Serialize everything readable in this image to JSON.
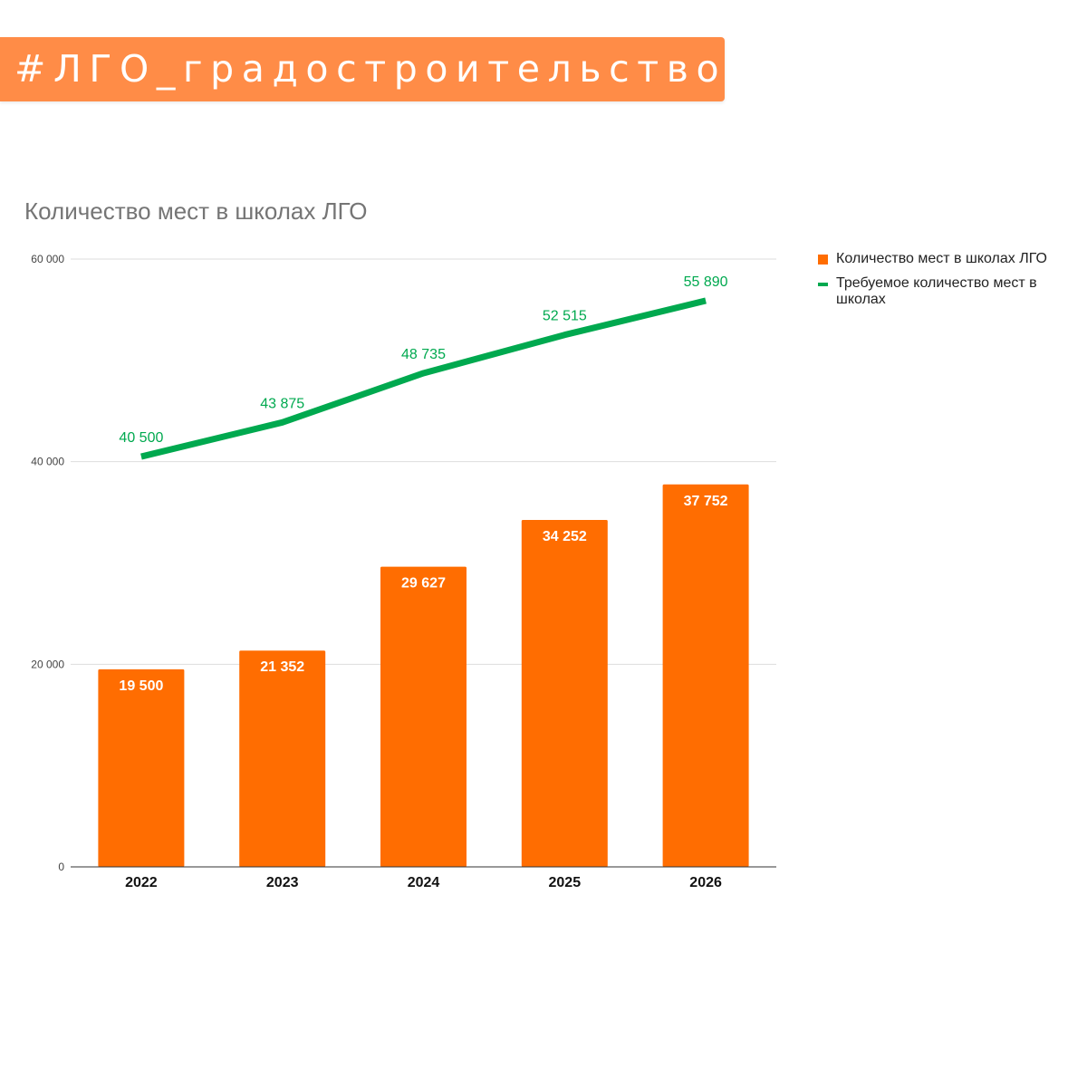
{
  "banner": {
    "hashtag": "#ЛГО_градостроительство",
    "color": "#ff8c47"
  },
  "chart_data": {
    "type": "bar",
    "title": "Количество мест в школах ЛГО",
    "categories": [
      "2022",
      "2023",
      "2024",
      "2025",
      "2026"
    ],
    "ylim": [
      0,
      60000
    ],
    "yticks": [
      0,
      20000,
      40000,
      60000
    ],
    "ytick_labels": [
      "0",
      "20 000",
      "40 000",
      "60 000"
    ],
    "grid": true,
    "legend_position": "right",
    "series": [
      {
        "name": "Количество мест в школах ЛГО",
        "kind": "bar",
        "color": "#ff6d01",
        "values": [
          19500,
          21352,
          29627,
          34252,
          37752
        ],
        "labels": [
          "19 500",
          "21 352",
          "29 627",
          "34 252",
          "37 752"
        ]
      },
      {
        "name": "Требуемое количество мест в школах",
        "kind": "line",
        "color": "#00a94f",
        "values": [
          40500,
          43875,
          48735,
          52515,
          55890
        ],
        "labels": [
          "40 500",
          "43 875",
          "48 735",
          "52 515",
          "55 890"
        ]
      }
    ]
  }
}
